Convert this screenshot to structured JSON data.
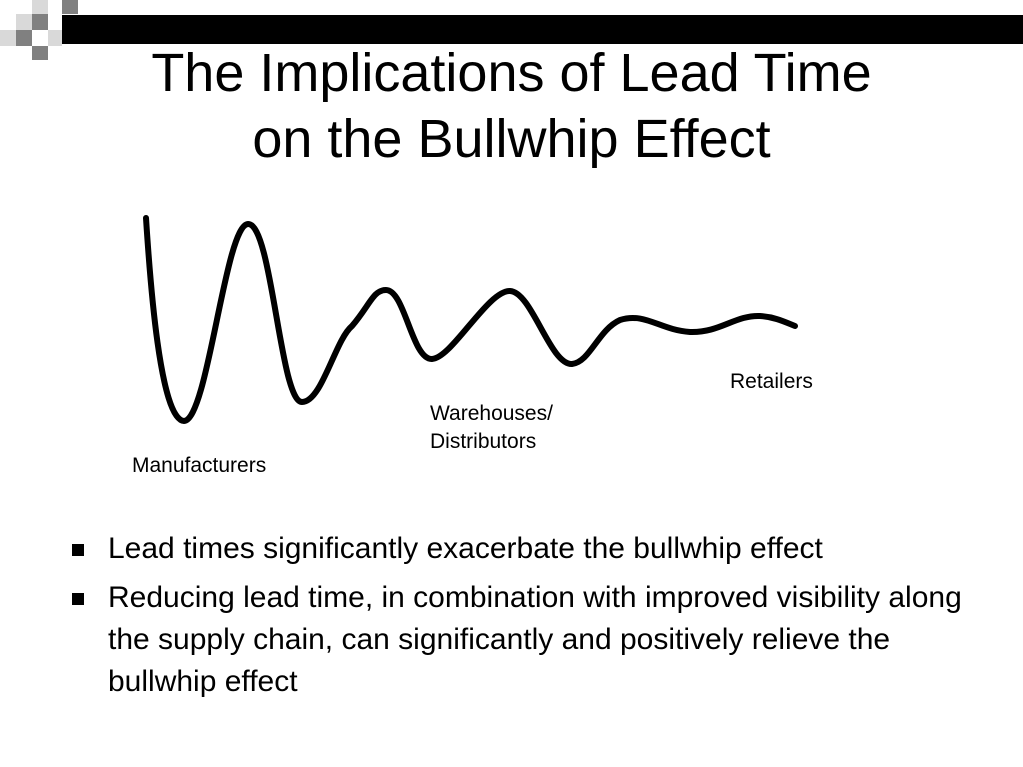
{
  "slide": {
    "title_line1": "The Implications of Lead Time",
    "title_line2": "on the Bullwhip Effect"
  },
  "diagram": {
    "labels": {
      "manufacturers": "Manufacturers",
      "warehouses_line1": "Warehouses/",
      "warehouses_line2": "Distributors",
      "retailers": "Retailers"
    }
  },
  "bullets": [
    "Lead times significantly exacerbate the bullwhip effect",
    "Reducing lead time, in combination with improved visibility along the supply chain, can significantly and positively relieve the bullwhip effect"
  ]
}
